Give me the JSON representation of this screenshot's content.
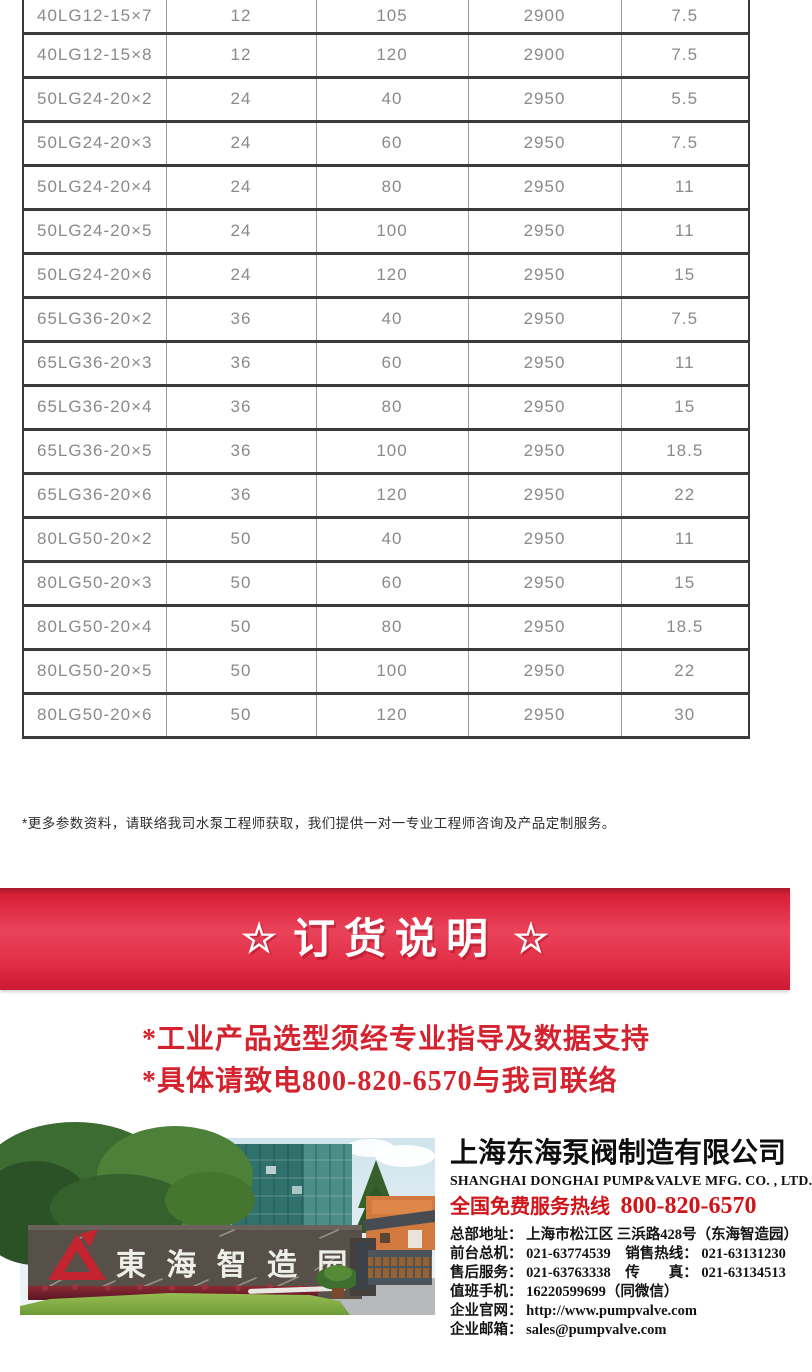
{
  "colors": {
    "banner_red": "#e2293f",
    "notice_red": "#d4232f",
    "hotline_red": "#d11419",
    "table_text_gray": "#8a8a8a"
  },
  "table": {
    "rows": [
      [
        "40LG12-15×7",
        "12",
        "105",
        "2900",
        "7.5"
      ],
      [
        "40LG12-15×8",
        "12",
        "120",
        "2900",
        "7.5"
      ],
      [
        "50LG24-20×2",
        "24",
        "40",
        "2950",
        "5.5"
      ],
      [
        "50LG24-20×3",
        "24",
        "60",
        "2950",
        "7.5"
      ],
      [
        "50LG24-20×4",
        "24",
        "80",
        "2950",
        "11"
      ],
      [
        "50LG24-20×5",
        "24",
        "100",
        "2950",
        "11"
      ],
      [
        "50LG24-20×6",
        "24",
        "120",
        "2950",
        "15"
      ],
      [
        "65LG36-20×2",
        "36",
        "40",
        "2950",
        "7.5"
      ],
      [
        "65LG36-20×3",
        "36",
        "60",
        "2950",
        "11"
      ],
      [
        "65LG36-20×4",
        "36",
        "80",
        "2950",
        "15"
      ],
      [
        "65LG36-20×5",
        "36",
        "100",
        "2950",
        "18.5"
      ],
      [
        "65LG36-20×6",
        "36",
        "120",
        "2950",
        "22"
      ],
      [
        "80LG50-20×2",
        "50",
        "40",
        "2950",
        "11"
      ],
      [
        "80LG50-20×3",
        "50",
        "60",
        "2950",
        "15"
      ],
      [
        "80LG50-20×4",
        "50",
        "80",
        "2950",
        "18.5"
      ],
      [
        "80LG50-20×5",
        "50",
        "100",
        "2950",
        "22"
      ],
      [
        "80LG50-20×6",
        "50",
        "120",
        "2950",
        "30"
      ]
    ]
  },
  "note": "*更多参数资料，请联络我司水泵工程师获取，我们提供一对一专业工程师咨询及产品定制服务。",
  "banner": {
    "star_left": "☆",
    "title": "订货说明",
    "star_right": "☆"
  },
  "notices": [
    "*工业产品选型须经专业指导及数据支持",
    "*具体请致电800-820-6570与我司联络"
  ],
  "photo": {
    "sign_text": "東 海 智 造 园"
  },
  "company": {
    "name_cn": "上海东海泵阀制造有限公司",
    "name_en": "SHANGHAI DONGHAI PUMP&VALVE MFG. CO. , LTD.",
    "hotline_label": "全国免费服务热线",
    "hotline_number": "800-820-6570",
    "contact_lines": [
      "总部地址： 上海市松江区 三浜路428号（东海智造园）",
      "前台总机： 021-63774539　销售热线： 021-63131230",
      "售后服务： 021-63763338　传　　真： 021-63134513",
      "值班手机： 16220599699（同微信）",
      "企业官网： http://www.pumpvalve.com",
      "企业邮箱： sales@pumpvalve.com"
    ]
  }
}
